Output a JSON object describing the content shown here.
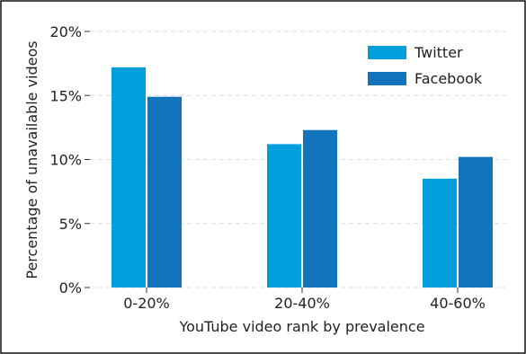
{
  "chart_data": {
    "type": "bar",
    "title": "",
    "xlabel": "YouTube video rank by prevalence",
    "ylabel": "Percentage of unavailable videos",
    "categories": [
      "0-20%",
      "20-40%",
      "40-60%"
    ],
    "series": [
      {
        "name": "Twitter",
        "color": "#039fdd",
        "values": [
          17.2,
          11.2,
          8.5
        ]
      },
      {
        "name": "Facebook",
        "color": "#1474bb",
        "values": [
          14.9,
          12.3,
          10.2
        ]
      }
    ],
    "ylim": [
      0,
      20
    ],
    "yticks": [
      0,
      5,
      10,
      15,
      20
    ],
    "ytick_labels": [
      "0%",
      "5%",
      "10%",
      "15%",
      "20%"
    ],
    "grid": true,
    "legend_position": "top-right"
  }
}
